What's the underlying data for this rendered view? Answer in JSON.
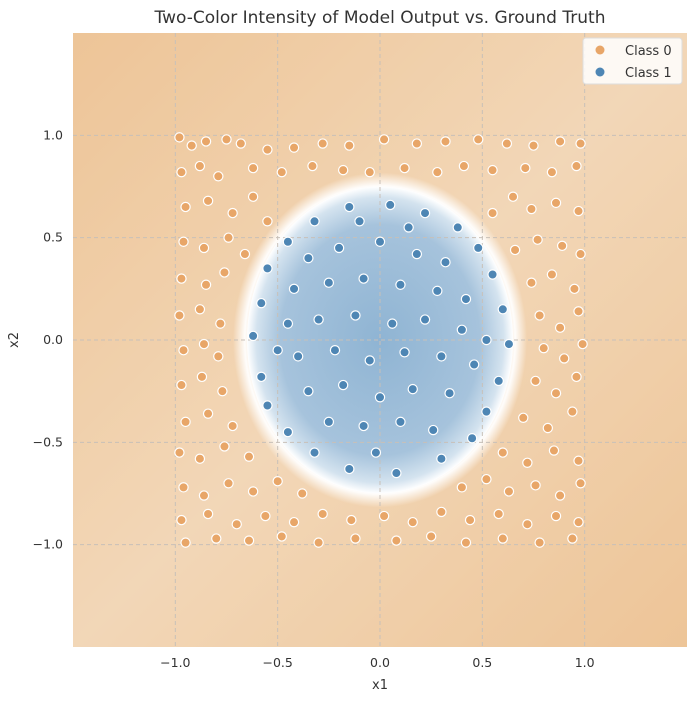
{
  "chart_data": {
    "type": "scatter",
    "title": "Two-Color Intensity of Model Output vs. Ground Truth",
    "xlabel": "x1",
    "ylabel": "x2",
    "xlim": [
      -1.5,
      1.5
    ],
    "ylim": [
      -1.5,
      1.5
    ],
    "xticks": [
      -1.0,
      -0.5,
      0.0,
      0.5,
      1.0
    ],
    "yticks": [
      -1.0,
      -0.5,
      0.0,
      0.5,
      1.0
    ],
    "xtick_labels": [
      "−1.0",
      "−0.5",
      "0.0",
      "0.5",
      "1.0"
    ],
    "ytick_labels": [
      "−1.0",
      "−0.5",
      "0.0",
      "0.5",
      "1.0"
    ],
    "grid": true,
    "legend_placement": "top-right",
    "background": {
      "type": "heatmap",
      "description_colors": {
        "class0": "#e8b07a",
        "class1": "#8fb4d3",
        "boundary": "#ffffff"
      },
      "blue_region": {
        "center": [
          0.0,
          0.0
        ],
        "rx": 0.65,
        "ry": 0.75
      }
    },
    "boundary": {
      "shape": "circle",
      "radius": 0.7
    },
    "series": [
      {
        "name": "Class 0",
        "color": "#e8a668",
        "rule": "points with sqrt(x1^2 + x2^2) >= 0.7",
        "points": [
          [
            -0.98,
            0.99
          ],
          [
            -0.92,
            0.95
          ],
          [
            -0.85,
            0.97
          ],
          [
            -0.75,
            0.98
          ],
          [
            -0.68,
            0.96
          ],
          [
            -0.55,
            0.93
          ],
          [
            -0.42,
            0.94
          ],
          [
            -0.28,
            0.96
          ],
          [
            -0.15,
            0.95
          ],
          [
            0.02,
            0.98
          ],
          [
            0.18,
            0.96
          ],
          [
            0.32,
            0.97
          ],
          [
            0.48,
            0.98
          ],
          [
            0.62,
            0.96
          ],
          [
            0.75,
            0.95
          ],
          [
            0.88,
            0.97
          ],
          [
            0.98,
            0.96
          ],
          [
            -0.97,
            0.82
          ],
          [
            -0.88,
            0.85
          ],
          [
            -0.79,
            0.8
          ],
          [
            -0.62,
            0.84
          ],
          [
            -0.48,
            0.82
          ],
          [
            -0.33,
            0.85
          ],
          [
            -0.18,
            0.83
          ],
          [
            -0.05,
            0.82
          ],
          [
            0.12,
            0.84
          ],
          [
            0.28,
            0.82
          ],
          [
            0.41,
            0.85
          ],
          [
            0.55,
            0.83
          ],
          [
            0.71,
            0.84
          ],
          [
            0.84,
            0.82
          ],
          [
            0.96,
            0.85
          ],
          [
            -0.95,
            0.65
          ],
          [
            -0.84,
            0.68
          ],
          [
            -0.72,
            0.62
          ],
          [
            -0.62,
            0.7
          ],
          [
            -0.55,
            0.58
          ],
          [
            0.55,
            0.62
          ],
          [
            0.65,
            0.7
          ],
          [
            0.74,
            0.64
          ],
          [
            0.86,
            0.67
          ],
          [
            0.97,
            0.63
          ],
          [
            -0.96,
            0.48
          ],
          [
            -0.86,
            0.45
          ],
          [
            -0.74,
            0.5
          ],
          [
            -0.66,
            0.42
          ],
          [
            0.66,
            0.44
          ],
          [
            0.77,
            0.49
          ],
          [
            0.89,
            0.46
          ],
          [
            0.98,
            0.42
          ],
          [
            -0.97,
            0.3
          ],
          [
            -0.85,
            0.27
          ],
          [
            -0.76,
            0.33
          ],
          [
            0.74,
            0.28
          ],
          [
            0.84,
            0.32
          ],
          [
            0.95,
            0.25
          ],
          [
            -0.98,
            0.12
          ],
          [
            -0.88,
            0.15
          ],
          [
            -0.78,
            0.08
          ],
          [
            0.78,
            0.12
          ],
          [
            0.88,
            0.06
          ],
          [
            0.97,
            0.14
          ],
          [
            -0.96,
            -0.05
          ],
          [
            -0.86,
            -0.02
          ],
          [
            -0.79,
            -0.08
          ],
          [
            0.8,
            -0.04
          ],
          [
            0.9,
            -0.09
          ],
          [
            0.99,
            -0.02
          ],
          [
            -0.97,
            -0.22
          ],
          [
            -0.87,
            -0.18
          ],
          [
            -0.77,
            -0.25
          ],
          [
            0.76,
            -0.2
          ],
          [
            0.86,
            -0.26
          ],
          [
            0.96,
            -0.18
          ],
          [
            -0.95,
            -0.4
          ],
          [
            -0.84,
            -0.36
          ],
          [
            -0.72,
            -0.42
          ],
          [
            0.7,
            -0.38
          ],
          [
            0.82,
            -0.43
          ],
          [
            0.94,
            -0.35
          ],
          [
            -0.98,
            -0.55
          ],
          [
            -0.88,
            -0.58
          ],
          [
            -0.76,
            -0.52
          ],
          [
            -0.64,
            -0.57
          ],
          [
            0.6,
            -0.55
          ],
          [
            0.72,
            -0.6
          ],
          [
            0.85,
            -0.54
          ],
          [
            0.97,
            -0.59
          ],
          [
            -0.96,
            -0.72
          ],
          [
            -0.86,
            -0.76
          ],
          [
            -0.74,
            -0.7
          ],
          [
            -0.62,
            -0.74
          ],
          [
            -0.5,
            -0.69
          ],
          [
            -0.38,
            -0.75
          ],
          [
            0.4,
            -0.72
          ],
          [
            0.52,
            -0.68
          ],
          [
            0.63,
            -0.74
          ],
          [
            0.76,
            -0.71
          ],
          [
            0.88,
            -0.76
          ],
          [
            0.98,
            -0.7
          ],
          [
            -0.97,
            -0.88
          ],
          [
            -0.84,
            -0.85
          ],
          [
            -0.7,
            -0.9
          ],
          [
            -0.56,
            -0.86
          ],
          [
            -0.42,
            -0.89
          ],
          [
            -0.28,
            -0.85
          ],
          [
            -0.14,
            -0.88
          ],
          [
            0.02,
            -0.86
          ],
          [
            0.16,
            -0.89
          ],
          [
            0.3,
            -0.84
          ],
          [
            0.44,
            -0.88
          ],
          [
            0.58,
            -0.85
          ],
          [
            0.72,
            -0.9
          ],
          [
            0.86,
            -0.86
          ],
          [
            0.97,
            -0.89
          ],
          [
            -0.95,
            -0.99
          ],
          [
            -0.8,
            -0.97
          ],
          [
            -0.64,
            -0.98
          ],
          [
            -0.48,
            -0.96
          ],
          [
            -0.3,
            -0.99
          ],
          [
            -0.12,
            -0.97
          ],
          [
            0.08,
            -0.98
          ],
          [
            0.25,
            -0.96
          ],
          [
            0.42,
            -0.99
          ],
          [
            0.6,
            -0.97
          ],
          [
            0.78,
            -0.99
          ],
          [
            0.94,
            -0.97
          ]
        ]
      },
      {
        "name": "Class 1",
        "color": "#4e86b4",
        "rule": "points with sqrt(x1^2 + x2^2) < 0.7",
        "points": [
          [
            -0.15,
            0.65
          ],
          [
            0.05,
            0.66
          ],
          [
            0.22,
            0.62
          ],
          [
            -0.32,
            0.58
          ],
          [
            0.38,
            0.55
          ],
          [
            -0.45,
            0.48
          ],
          [
            0.48,
            0.45
          ],
          [
            -0.55,
            0.35
          ],
          [
            0.55,
            0.32
          ],
          [
            -0.58,
            0.18
          ],
          [
            0.6,
            0.15
          ],
          [
            -0.62,
            0.02
          ],
          [
            0.63,
            -0.02
          ],
          [
            -0.58,
            -0.18
          ],
          [
            0.58,
            -0.2
          ],
          [
            -0.55,
            -0.32
          ],
          [
            0.52,
            -0.35
          ],
          [
            -0.45,
            -0.45
          ],
          [
            0.45,
            -0.48
          ],
          [
            -0.32,
            -0.55
          ],
          [
            0.3,
            -0.58
          ],
          [
            -0.15,
            -0.63
          ],
          [
            0.08,
            -0.65
          ],
          [
            -0.35,
            0.4
          ],
          [
            -0.2,
            0.45
          ],
          [
            0.0,
            0.48
          ],
          [
            0.18,
            0.42
          ],
          [
            0.32,
            0.38
          ],
          [
            -0.42,
            0.25
          ],
          [
            -0.25,
            0.28
          ],
          [
            -0.08,
            0.3
          ],
          [
            0.1,
            0.27
          ],
          [
            0.28,
            0.24
          ],
          [
            0.42,
            0.2
          ],
          [
            -0.45,
            0.08
          ],
          [
            -0.3,
            0.1
          ],
          [
            -0.12,
            0.12
          ],
          [
            0.06,
            0.08
          ],
          [
            0.22,
            0.1
          ],
          [
            0.4,
            0.05
          ],
          [
            -0.4,
            -0.08
          ],
          [
            -0.22,
            -0.05
          ],
          [
            -0.05,
            -0.1
          ],
          [
            0.12,
            -0.06
          ],
          [
            0.3,
            -0.08
          ],
          [
            0.46,
            -0.12
          ],
          [
            -0.35,
            -0.25
          ],
          [
            -0.18,
            -0.22
          ],
          [
            0.0,
            -0.28
          ],
          [
            0.16,
            -0.24
          ],
          [
            0.34,
            -0.26
          ],
          [
            -0.25,
            -0.4
          ],
          [
            -0.08,
            -0.42
          ],
          [
            0.1,
            -0.4
          ],
          [
            0.26,
            -0.44
          ],
          [
            -0.1,
            0.58
          ],
          [
            0.14,
            0.55
          ],
          [
            -0.5,
            -0.05
          ],
          [
            0.52,
            0.0
          ],
          [
            -0.02,
            -0.55
          ]
        ]
      }
    ]
  }
}
